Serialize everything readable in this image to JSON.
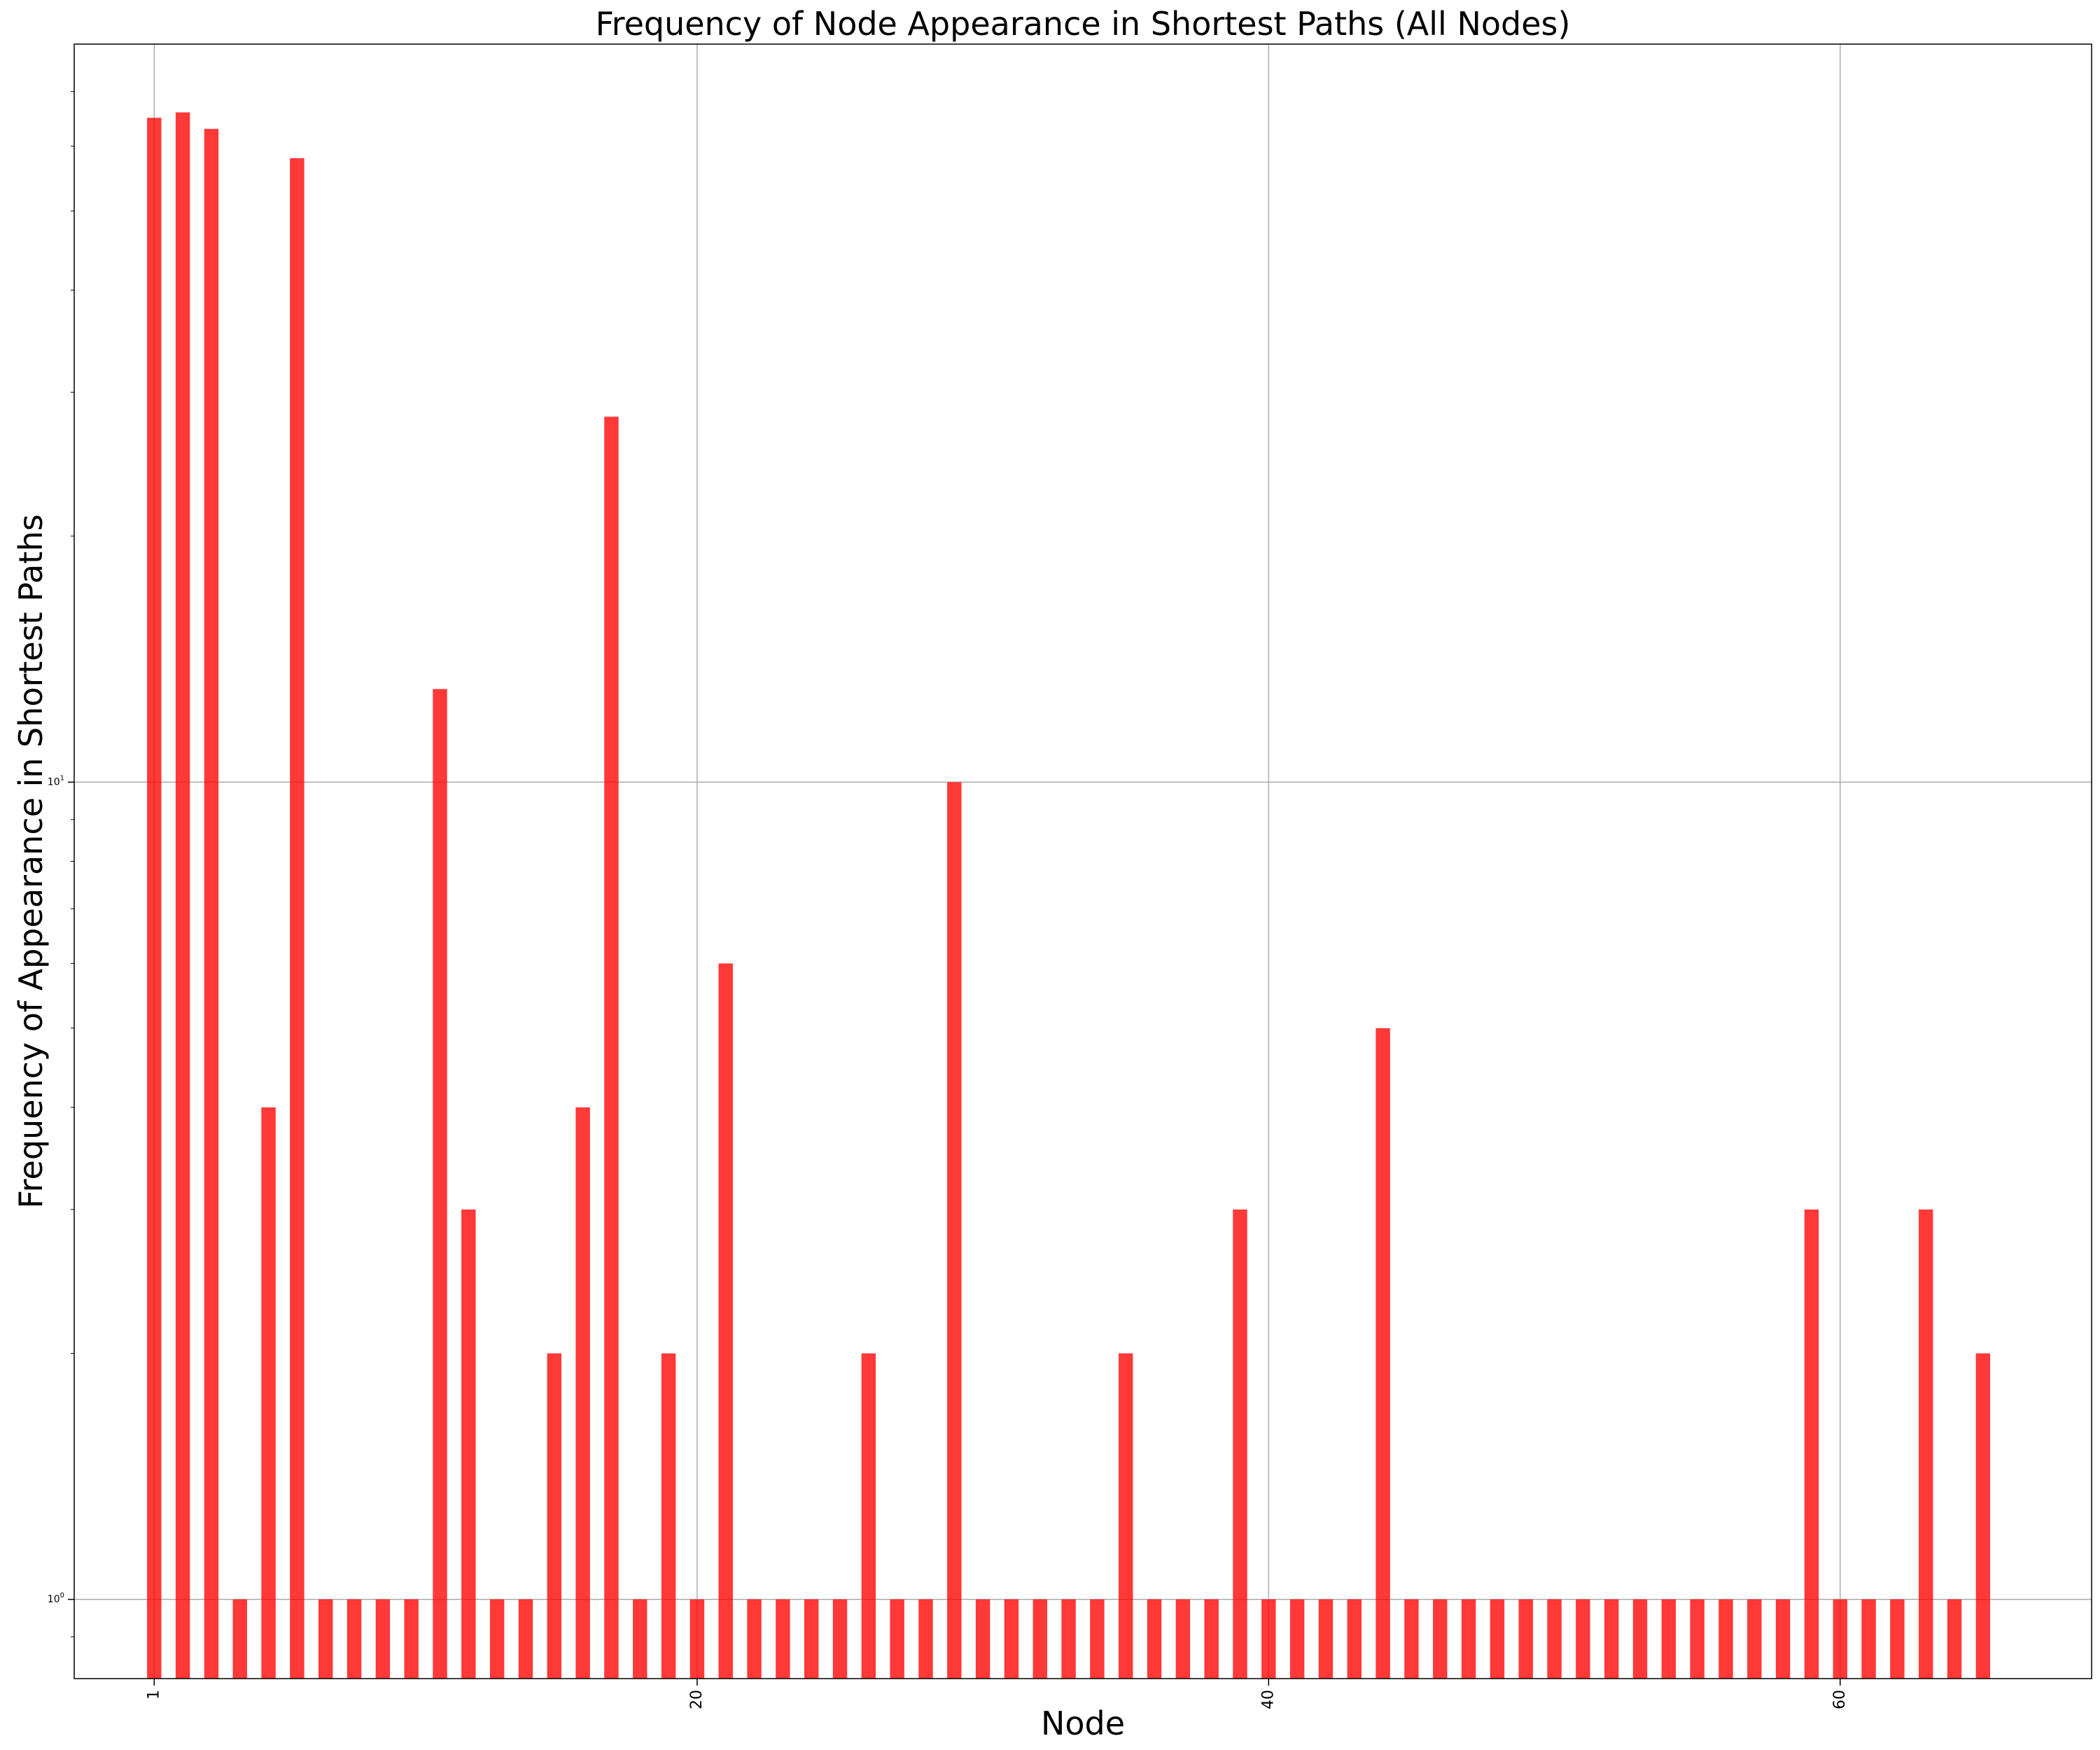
{
  "chart_data": {
    "type": "bar",
    "title": "Frequency of Node Appearance in Shortest Paths (All Nodes)",
    "xlabel": "Node",
    "ylabel": "Frequency of Appearance in Shortest Paths",
    "yscale": "log",
    "xlim": [
      -1.8,
      68.8
    ],
    "ylim": [
      0.8,
      80
    ],
    "grid": true,
    "bar_color": "#ff0000",
    "bar_alpha": 0.78,
    "x_ticks": [
      {
        "value": 1,
        "label": "1"
      },
      {
        "value": 20,
        "label": "20"
      },
      {
        "value": 40,
        "label": "40"
      },
      {
        "value": 60,
        "label": "60"
      }
    ],
    "y_ticks": [
      {
        "value": 1,
        "label_base": "10",
        "label_exp": "0"
      },
      {
        "value": 10,
        "label_base": "10",
        "label_exp": "1"
      }
    ],
    "x": [
      1,
      2,
      3,
      4,
      5,
      6,
      7,
      8,
      9,
      10,
      11,
      12,
      13,
      14,
      15,
      16,
      17,
      18,
      19,
      20,
      21,
      22,
      23,
      24,
      25,
      26,
      27,
      28,
      29,
      30,
      31,
      32,
      33,
      34,
      35,
      36,
      37,
      38,
      39,
      40,
      41,
      42,
      43,
      44,
      45,
      46,
      47,
      48,
      49,
      50,
      51,
      52,
      53,
      54,
      55,
      56,
      57,
      58,
      59,
      60,
      61,
      62,
      63,
      64,
      65
    ],
    "values": [
      65,
      66,
      63,
      1,
      4,
      58,
      1,
      1,
      1,
      1,
      13,
      3,
      1,
      1,
      2,
      4,
      28,
      1,
      2,
      1,
      6,
      1,
      1,
      1,
      1,
      2,
      1,
      1,
      10,
      1,
      1,
      1,
      1,
      1,
      2,
      1,
      1,
      1,
      3,
      1,
      1,
      1,
      1,
      5,
      1,
      1,
      1,
      1,
      1,
      1,
      1,
      1,
      1,
      1,
      1,
      1,
      1,
      1,
      3,
      1,
      1,
      1,
      3,
      1,
      2
    ]
  }
}
